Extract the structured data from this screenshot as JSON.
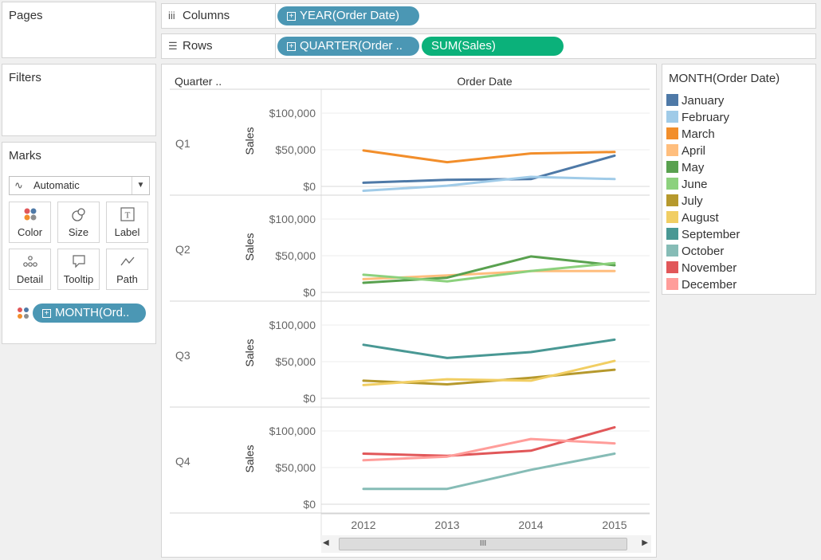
{
  "pages": {
    "title": "Pages"
  },
  "columns_shelf": {
    "label": "Columns",
    "glyph": "iii",
    "pill": "YEAR(Order Date)"
  },
  "rows_shelf": {
    "label": "Rows",
    "glyph": "☰",
    "pills": [
      "QUARTER(Order ..",
      "SUM(Sales)"
    ]
  },
  "filters": {
    "title": "Filters"
  },
  "marks": {
    "title": "Marks",
    "type": "Automatic",
    "buttons": [
      "Color",
      "Size",
      "Label",
      "Detail",
      "Tooltip",
      "Path"
    ],
    "color_pill": "MONTH(Ord.."
  },
  "legend": {
    "title": "MONTH(Order Date)",
    "items": [
      {
        "label": "January",
        "color": "#4e79a7"
      },
      {
        "label": "February",
        "color": "#a0cbe8"
      },
      {
        "label": "March",
        "color": "#f28e2b"
      },
      {
        "label": "April",
        "color": "#ffbe7d"
      },
      {
        "label": "May",
        "color": "#59a14f"
      },
      {
        "label": "June",
        "color": "#8cd17d"
      },
      {
        "label": "July",
        "color": "#b6992d"
      },
      {
        "label": "August",
        "color": "#f1ce63"
      },
      {
        "label": "September",
        "color": "#499894"
      },
      {
        "label": "October",
        "color": "#86bcb6"
      },
      {
        "label": "November",
        "color": "#e15759"
      },
      {
        "label": "December",
        "color": "#ff9d9a"
      }
    ]
  },
  "view": {
    "row_header": "Quarter ..",
    "column_header": "Order Date",
    "scroll_thumb": "III"
  },
  "chart_data": {
    "type": "line",
    "x": [
      "2012",
      "2013",
      "2014",
      "2015"
    ],
    "ylabel": "Sales",
    "ylim": [
      0,
      110000
    ],
    "yticks": [
      "$0",
      "$50,000",
      "$100,000"
    ],
    "grid": true,
    "panels": [
      {
        "quarter": "Q1",
        "series": [
          {
            "name": "January",
            "values": [
              5000,
              9000,
              10000,
              42000
            ]
          },
          {
            "name": "February",
            "values": [
              -6000,
              1000,
              13000,
              10000
            ]
          },
          {
            "name": "March",
            "values": [
              49000,
              33000,
              45000,
              47000
            ]
          }
        ]
      },
      {
        "quarter": "Q2",
        "series": [
          {
            "name": "April",
            "values": [
              18000,
              23000,
              29000,
              29000
            ]
          },
          {
            "name": "May",
            "values": [
              13000,
              20000,
              49000,
              37000
            ]
          },
          {
            "name": "June",
            "values": [
              24000,
              15000,
              29000,
              40000
            ]
          }
        ]
      },
      {
        "quarter": "Q3",
        "series": [
          {
            "name": "July",
            "values": [
              24000,
              19000,
              28000,
              39000
            ]
          },
          {
            "name": "August",
            "values": [
              18000,
              26000,
              24000,
              51000
            ]
          },
          {
            "name": "September",
            "values": [
              73000,
              55000,
              63000,
              80000
            ]
          }
        ]
      },
      {
        "quarter": "Q4",
        "series": [
          {
            "name": "October",
            "values": [
              21000,
              21000,
              47000,
              69000
            ]
          },
          {
            "name": "November",
            "values": [
              69000,
              66000,
              73000,
              105000
            ]
          },
          {
            "name": "December",
            "values": [
              60000,
              65000,
              89000,
              83000
            ]
          }
        ]
      }
    ]
  }
}
